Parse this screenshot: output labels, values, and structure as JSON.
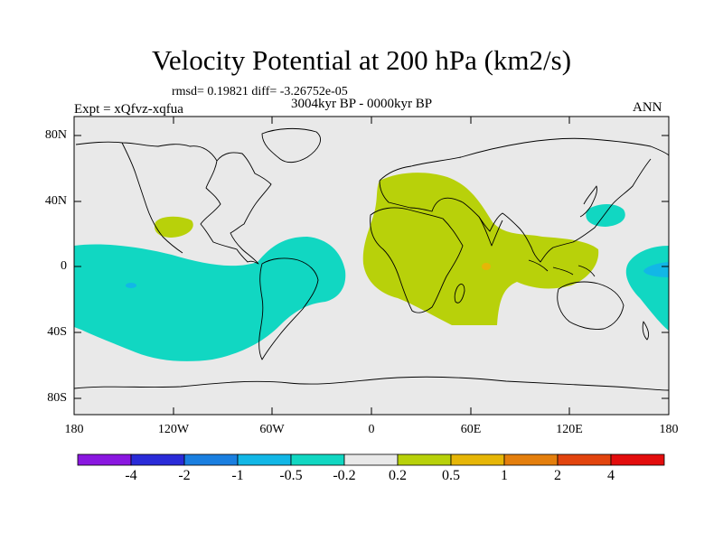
{
  "title": "Velocity Potential at 200 hPa (km2/s)",
  "stats": "rmsd= 0.19821 diff= -3.26752e-05",
  "period": "3004kyr BP - 0000kyr BP",
  "experiment": "Expt = xQfvz-xqfua",
  "season": "ANN",
  "axes": {
    "lat_labels": [
      "80N",
      "40N",
      "0",
      "40S",
      "80S"
    ],
    "lon_labels": [
      "180",
      "120W",
      "60W",
      "0",
      "60E",
      "120E",
      "180"
    ]
  },
  "colorbar": {
    "labels": [
      "-4",
      "-2",
      "-1",
      "-0.5",
      "-0.2",
      "0.2",
      "0.5",
      "1",
      "2",
      "4"
    ],
    "colors": [
      "#8a17e0",
      "#2a2bd8",
      "#1a7fe0",
      "#12b7e6",
      "#11d7c2",
      "#e9e9e9",
      "#b8d10a",
      "#e6b607",
      "#e47f0d",
      "#e2440e",
      "#e30d0d"
    ]
  },
  "colors": {
    "background": "#e9e9e9",
    "neg_weak": "#11d7c2",
    "neg_mid": "#12b7e6",
    "pos_weak": "#b8d10a",
    "pos_mid": "#e6b607"
  }
}
